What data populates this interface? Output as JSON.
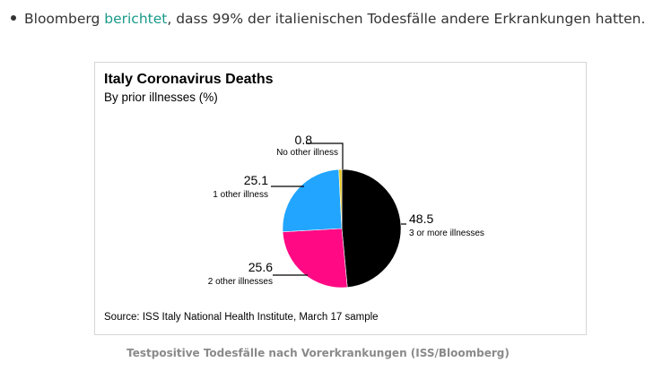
{
  "bullet": {
    "prefix": "Bloomberg ",
    "link": "berichtet",
    "suffix": ", dass 99% der italienischen Todesfälle andere Erkrankungen hatten."
  },
  "chart_data": {
    "type": "pie",
    "title": "Italy Coronavirus Deaths",
    "subtitle": "By prior illnesses (%)",
    "source": "Source: ISS Italy National Health Institute, March 17 sample",
    "slices": [
      {
        "label": "3 or more illnesses",
        "value": 48.5,
        "value_text": "48.5",
        "color": "#000000"
      },
      {
        "label": "2 other illnesses",
        "value": 25.6,
        "value_text": "25.6",
        "color": "#ff0a84"
      },
      {
        "label": "1 other illness",
        "value": 25.1,
        "value_text": "25.1",
        "color": "#21a5ff"
      },
      {
        "label": "No other illness",
        "value": 0.8,
        "value_text": "0.8",
        "color": "#e6c619"
      }
    ],
    "start": "12 o'clock",
    "direction": "clockwise"
  },
  "caption": "Testpositive Todesfälle nach Vorerkrankungen (ISS/Bloomberg)"
}
